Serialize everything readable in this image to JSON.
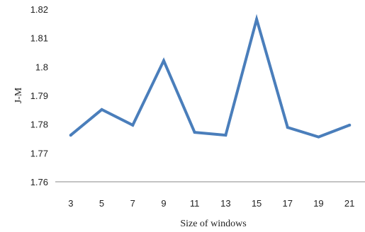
{
  "chart_data": {
    "type": "line",
    "title": "",
    "xlabel": "Size of windows",
    "ylabel": "J-M",
    "x": [
      "3",
      "5",
      "7",
      "9",
      "11",
      "13",
      "15",
      "17",
      "19",
      "21"
    ],
    "series": [
      {
        "values": [
          1.7762,
          1.7851,
          1.7797,
          1.8021,
          1.7772,
          1.7762,
          1.8165,
          1.7789,
          1.7756,
          1.7797
        ]
      }
    ],
    "ylim": [
      1.76,
      1.82
    ],
    "yticks": [
      "1.76",
      "1.77",
      "1.78",
      "1.79",
      "1.8",
      "1.81",
      "1.82"
    ],
    "grid": false,
    "legend": "none",
    "line_color": "#4a7ebb"
  }
}
